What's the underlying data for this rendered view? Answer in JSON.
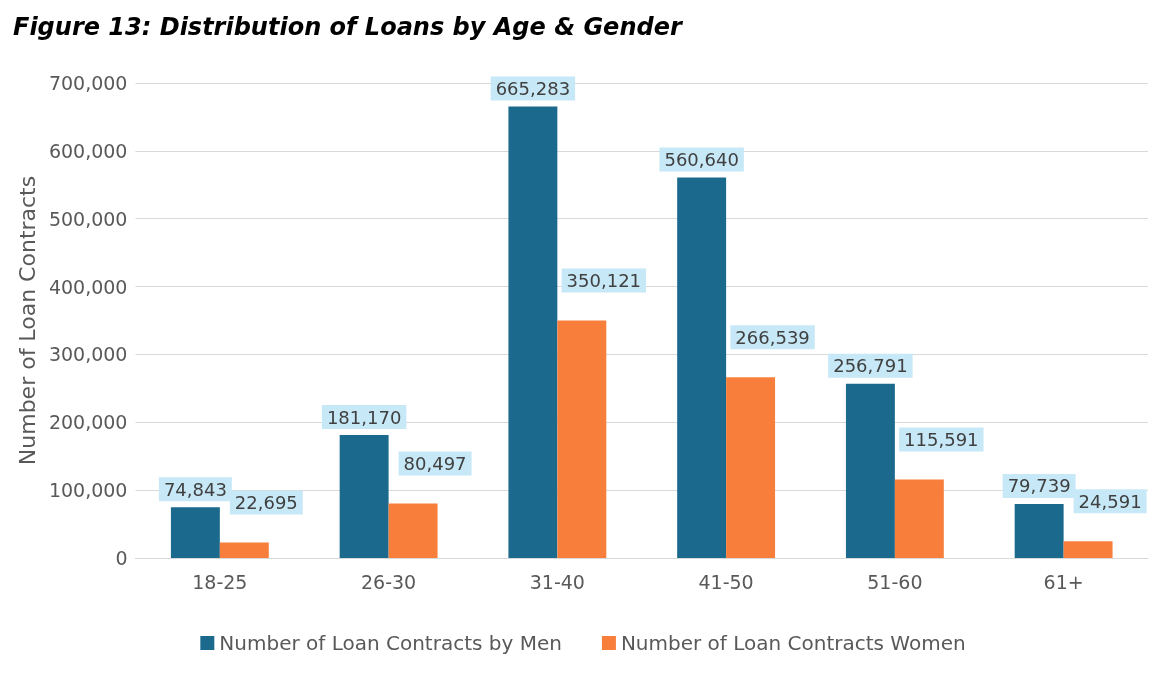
{
  "chart_data": {
    "type": "bar",
    "title": "Figure 13: Distribution of Loans by Age & Gender",
    "ylabel": "Number of Loan Contracts",
    "categories": [
      "18-25",
      "26-30",
      "31-40",
      "41-50",
      "51-60",
      "61+"
    ],
    "series": [
      {
        "name": "Number of Loan Contracts by Men",
        "color": "#1c698e",
        "values": [
          74843,
          181170,
          665283,
          560640,
          256791,
          79739
        ],
        "value_labels": [
          "74,843",
          "181,170",
          "665,283",
          "560,640",
          "256,791",
          "79,739"
        ]
      },
      {
        "name": "Number of Loan Contracts Women",
        "color": "#f77e3b",
        "values": [
          22695,
          80497,
          350121,
          266539,
          115591,
          24591
        ],
        "value_labels": [
          "22,695",
          "80,497",
          "350,121",
          "266,539",
          "115,591",
          "24,591"
        ]
      }
    ],
    "ylim": [
      0,
      700000
    ],
    "yticks": [
      {
        "value": 0,
        "label": "0"
      },
      {
        "value": 100000,
        "label": "100,000"
      },
      {
        "value": 200000,
        "label": "200,000"
      },
      {
        "value": 300000,
        "label": "300,000"
      },
      {
        "value": 400000,
        "label": "400,000"
      },
      {
        "value": 500000,
        "label": "500,000"
      },
      {
        "value": 600000,
        "label": "600,000"
      },
      {
        "value": 700000,
        "label": "700,000"
      }
    ],
    "grid": "y",
    "legend": "bottom"
  }
}
